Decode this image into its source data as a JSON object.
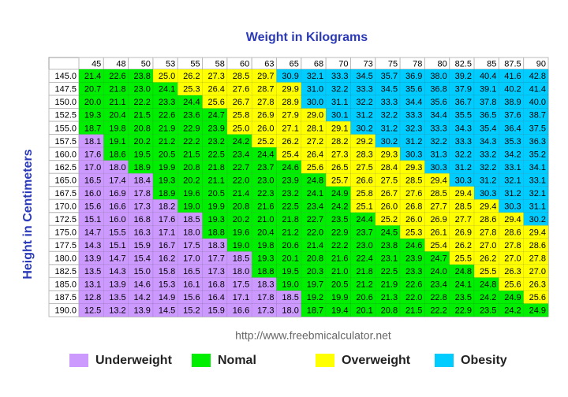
{
  "title": "Weight in Kilograms",
  "y_axis_label": "Height in Centimeters",
  "url": "http://www.freebmicalculator.net",
  "legend": [
    {
      "label": "Underweight",
      "color": "#cc99ff"
    },
    {
      "label": "Nomal",
      "color": "#00ee00"
    },
    {
      "label": "Overweight",
      "color": "#ffff00"
    },
    {
      "label": "Obesity",
      "color": "#00ccff"
    }
  ],
  "table": {
    "columns": [
      "45",
      "48",
      "50",
      "53",
      "55",
      "58",
      "60",
      "63",
      "65",
      "68",
      "70",
      "73",
      "75",
      "78",
      "80",
      "82.5",
      "85",
      "87.5",
      "90"
    ],
    "rows": [
      {
        "height": "145.0",
        "values": [
          "21.4",
          "22.6",
          "23.8",
          "25.0",
          "26.2",
          "27.3",
          "28.5",
          "29.7",
          "30.9",
          "32.1",
          "33.3",
          "34.5",
          "35.7",
          "36.9",
          "38.0",
          "39.2",
          "40.4",
          "41.6",
          "42.8"
        ],
        "levels": [
          1,
          1,
          1,
          2,
          2,
          2,
          2,
          2,
          3,
          3,
          3,
          3,
          3,
          3,
          3,
          3,
          3,
          3,
          3
        ]
      },
      {
        "height": "147.5",
        "values": [
          "20.7",
          "21.8",
          "23.0",
          "24.1",
          "25.3",
          "26.4",
          "27.6",
          "28.7",
          "29.9",
          "31.0",
          "32.2",
          "33.3",
          "34.5",
          "35.6",
          "36.8",
          "37.9",
          "39.1",
          "40.2",
          "41.4"
        ],
        "levels": [
          1,
          1,
          1,
          1,
          2,
          2,
          2,
          2,
          2,
          3,
          3,
          3,
          3,
          3,
          3,
          3,
          3,
          3,
          3
        ]
      },
      {
        "height": "150.0",
        "values": [
          "20.0",
          "21.1",
          "22.2",
          "23.3",
          "24.4",
          "25.6",
          "26.7",
          "27.8",
          "28.9",
          "30.0",
          "31.1",
          "32.2",
          "33.3",
          "34.4",
          "35.6",
          "36.7",
          "37.8",
          "38.9",
          "40.0"
        ],
        "levels": [
          1,
          1,
          1,
          1,
          1,
          2,
          2,
          2,
          2,
          3,
          3,
          3,
          3,
          3,
          3,
          3,
          3,
          3,
          3
        ]
      },
      {
        "height": "152.5",
        "values": [
          "19.3",
          "20.4",
          "21.5",
          "22.6",
          "23.6",
          "24.7",
          "25.8",
          "26.9",
          "27.9",
          "29.0",
          "30.1",
          "31.2",
          "32.2",
          "33.3",
          "34.4",
          "35.5",
          "36.5",
          "37.6",
          "38.7"
        ],
        "levels": [
          1,
          1,
          1,
          1,
          1,
          1,
          2,
          2,
          2,
          2,
          3,
          3,
          3,
          3,
          3,
          3,
          3,
          3,
          3
        ]
      },
      {
        "height": "155.0",
        "values": [
          "18.7",
          "19.8",
          "20.8",
          "21.9",
          "22.9",
          "23.9",
          "25.0",
          "26.0",
          "27.1",
          "28.1",
          "29.1",
          "30.2",
          "31.2",
          "32.3",
          "33.3",
          "34.3",
          "35.4",
          "36.4",
          "37.5"
        ],
        "levels": [
          1,
          1,
          1,
          1,
          1,
          1,
          2,
          2,
          2,
          2,
          2,
          3,
          3,
          3,
          3,
          3,
          3,
          3,
          3
        ]
      },
      {
        "height": "157.5",
        "values": [
          "18.1",
          "19.1",
          "20.2",
          "21.2",
          "22.2",
          "23.2",
          "24.2",
          "25.2",
          "26.2",
          "27.2",
          "28.2",
          "29.2",
          "30.2",
          "31.2",
          "32.2",
          "33.3",
          "34.3",
          "35.3",
          "36.3"
        ],
        "levels": [
          0,
          1,
          1,
          1,
          1,
          1,
          1,
          2,
          2,
          2,
          2,
          2,
          3,
          3,
          3,
          3,
          3,
          3,
          3
        ]
      },
      {
        "height": "160.0",
        "values": [
          "17.6",
          "18.6",
          "19.5",
          "20.5",
          "21.5",
          "22.5",
          "23.4",
          "24.4",
          "25.4",
          "26.4",
          "27.3",
          "28.3",
          "29.3",
          "30.3",
          "31.3",
          "32.2",
          "33.2",
          "34.2",
          "35.2"
        ],
        "levels": [
          0,
          1,
          1,
          1,
          1,
          1,
          1,
          1,
          2,
          2,
          2,
          2,
          2,
          3,
          3,
          3,
          3,
          3,
          3
        ]
      },
      {
        "height": "162.5",
        "values": [
          "17.0",
          "18.0",
          "18.9",
          "19.9",
          "20.8",
          "21.8",
          "22.7",
          "23.7",
          "24.6",
          "25.6",
          "26.5",
          "27.5",
          "28.4",
          "29.3",
          "30.3",
          "31.2",
          "32.2",
          "33.1",
          "34.1"
        ],
        "levels": [
          0,
          0,
          1,
          1,
          1,
          1,
          1,
          1,
          1,
          2,
          2,
          2,
          2,
          2,
          3,
          3,
          3,
          3,
          3
        ]
      },
      {
        "height": "165.0",
        "values": [
          "16.5",
          "17.4",
          "18.4",
          "19.3",
          "20.2",
          "21.1",
          "22.0",
          "23.0",
          "23.9",
          "24.8",
          "25.7",
          "26.6",
          "27.5",
          "28.5",
          "29.4",
          "30.3",
          "31.2",
          "32.1",
          "33.1"
        ],
        "levels": [
          0,
          0,
          0,
          1,
          1,
          1,
          1,
          1,
          1,
          1,
          2,
          2,
          2,
          2,
          2,
          3,
          3,
          3,
          3
        ]
      },
      {
        "height": "167.5",
        "values": [
          "16.0",
          "16.9",
          "17.8",
          "18.9",
          "19.6",
          "20.5",
          "21.4",
          "22.3",
          "23.2",
          "24.1",
          "24.9",
          "25.8",
          "26.7",
          "27.6",
          "28.5",
          "29.4",
          "30.3",
          "31.2",
          "32.1"
        ],
        "levels": [
          0,
          0,
          0,
          1,
          1,
          1,
          1,
          1,
          1,
          1,
          1,
          2,
          2,
          2,
          2,
          2,
          3,
          3,
          3
        ]
      },
      {
        "height": "170.0",
        "values": [
          "15.6",
          "16.6",
          "17.3",
          "18.2",
          "19.0",
          "19.9",
          "20.8",
          "21.6",
          "22.5",
          "23.4",
          "24.2",
          "25.1",
          "26.0",
          "26.8",
          "27.7",
          "28.5",
          "29.4",
          "30.3",
          "31.1"
        ],
        "levels": [
          0,
          0,
          0,
          0,
          1,
          1,
          1,
          1,
          1,
          1,
          1,
          2,
          2,
          2,
          2,
          2,
          2,
          3,
          3
        ]
      },
      {
        "height": "172.5",
        "values": [
          "15.1",
          "16.0",
          "16.8",
          "17.6",
          "18.5",
          "19.3",
          "20.2",
          "21.0",
          "21.8",
          "22.7",
          "23.5",
          "24.4",
          "25.2",
          "26.0",
          "26.9",
          "27.7",
          "28.6",
          "29.4",
          "30.2"
        ],
        "levels": [
          0,
          0,
          0,
          0,
          0,
          1,
          1,
          1,
          1,
          1,
          1,
          1,
          2,
          2,
          2,
          2,
          2,
          2,
          3
        ]
      },
      {
        "height": "175.0",
        "values": [
          "14.7",
          "15.5",
          "16.3",
          "17.1",
          "18.0",
          "18.8",
          "19.6",
          "20.4",
          "21.2",
          "22.0",
          "22.9",
          "23.7",
          "24.5",
          "25.3",
          "26.1",
          "26.9",
          "27.8",
          "28.6",
          "29.4"
        ],
        "levels": [
          0,
          0,
          0,
          0,
          0,
          1,
          1,
          1,
          1,
          1,
          1,
          1,
          1,
          2,
          2,
          2,
          2,
          2,
          2
        ]
      },
      {
        "height": "177.5",
        "values": [
          "14.3",
          "15.1",
          "15.9",
          "16.7",
          "17.5",
          "18.3",
          "19.0",
          "19.8",
          "20.6",
          "21.4",
          "22.2",
          "23.0",
          "23.8",
          "24.6",
          "25.4",
          "26.2",
          "27.0",
          "27.8",
          "28.6"
        ],
        "levels": [
          0,
          0,
          0,
          0,
          0,
          0,
          1,
          1,
          1,
          1,
          1,
          1,
          1,
          1,
          2,
          2,
          2,
          2,
          2
        ]
      },
      {
        "height": "180.0",
        "values": [
          "13.9",
          "14.7",
          "15.4",
          "16.2",
          "17.0",
          "17.7",
          "18.5",
          "19.3",
          "20.1",
          "20.8",
          "21.6",
          "22.4",
          "23.1",
          "23.9",
          "24.7",
          "25.5",
          "26.2",
          "27.0",
          "27.8"
        ],
        "levels": [
          0,
          0,
          0,
          0,
          0,
          0,
          0,
          1,
          1,
          1,
          1,
          1,
          1,
          1,
          1,
          2,
          2,
          2,
          2
        ]
      },
      {
        "height": "182.5",
        "values": [
          "13.5",
          "14.3",
          "15.0",
          "15.8",
          "16.5",
          "17.3",
          "18.0",
          "18.8",
          "19.5",
          "20.3",
          "21.0",
          "21.8",
          "22.5",
          "23.3",
          "24.0",
          "24.8",
          "25.5",
          "26.3",
          "27.0"
        ],
        "levels": [
          0,
          0,
          0,
          0,
          0,
          0,
          0,
          1,
          1,
          1,
          1,
          1,
          1,
          1,
          1,
          1,
          2,
          2,
          2
        ]
      },
      {
        "height": "185.0",
        "values": [
          "13.1",
          "13.9",
          "14.6",
          "15.3",
          "16.1",
          "16.8",
          "17.5",
          "18.3",
          "19.0",
          "19.7",
          "20.5",
          "21.2",
          "21.9",
          "22.6",
          "23.4",
          "24.1",
          "24.8",
          "25.6",
          "26.3"
        ],
        "levels": [
          0,
          0,
          0,
          0,
          0,
          0,
          0,
          0,
          1,
          1,
          1,
          1,
          1,
          1,
          1,
          1,
          1,
          2,
          2
        ]
      },
      {
        "height": "187.5",
        "values": [
          "12.8",
          "13.5",
          "14.2",
          "14.9",
          "15.6",
          "16.4",
          "17.1",
          "17.8",
          "18.5",
          "19.2",
          "19.9",
          "20.6",
          "21.3",
          "22.0",
          "22.8",
          "23.5",
          "24.2",
          "24.9",
          "25.6"
        ],
        "levels": [
          0,
          0,
          0,
          0,
          0,
          0,
          0,
          0,
          0,
          1,
          1,
          1,
          1,
          1,
          1,
          1,
          1,
          1,
          2
        ]
      },
      {
        "height": "190.0",
        "values": [
          "12.5",
          "13.2",
          "13.9",
          "14.5",
          "15.2",
          "15.9",
          "16.6",
          "17.3",
          "18.0",
          "18.7",
          "19.4",
          "20.1",
          "20.8",
          "21.5",
          "22.2",
          "22.9",
          "23.5",
          "24.2",
          "24.9"
        ],
        "levels": [
          0,
          0,
          0,
          0,
          0,
          0,
          0,
          0,
          0,
          1,
          1,
          1,
          1,
          1,
          1,
          1,
          1,
          1,
          1
        ]
      }
    ]
  }
}
